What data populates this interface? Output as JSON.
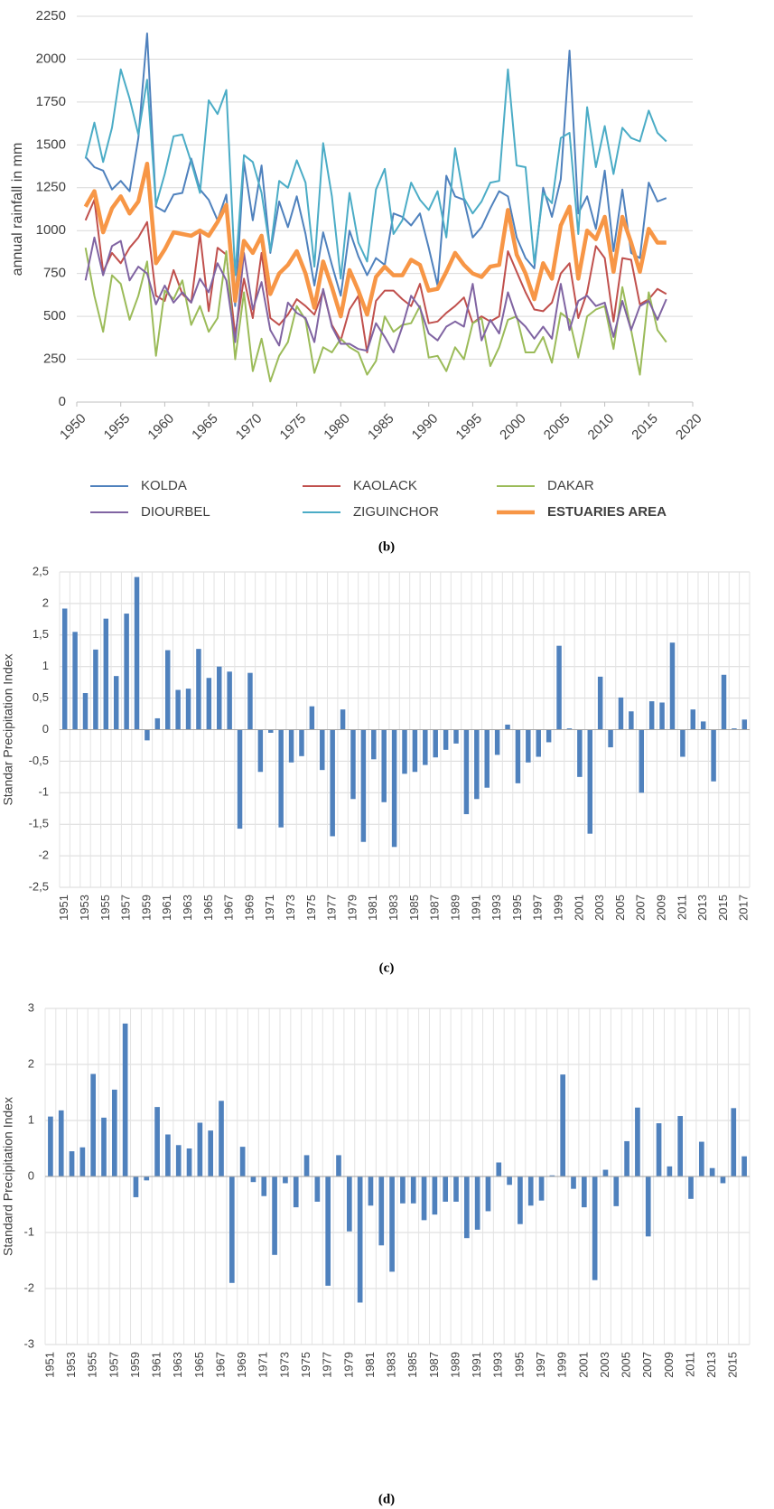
{
  "chart_data": [
    {
      "type": "line",
      "ylabel": "annual rainfall in mm",
      "caption": "(b)",
      "x": [
        1951,
        1952,
        1953,
        1954,
        1955,
        1956,
        1957,
        1958,
        1959,
        1960,
        1961,
        1962,
        1963,
        1964,
        1965,
        1966,
        1967,
        1968,
        1969,
        1970,
        1971,
        1972,
        1973,
        1974,
        1975,
        1976,
        1977,
        1978,
        1979,
        1980,
        1981,
        1982,
        1983,
        1984,
        1985,
        1986,
        1987,
        1988,
        1989,
        1990,
        1991,
        1992,
        1993,
        1994,
        1995,
        1996,
        1997,
        1998,
        1999,
        2000,
        2001,
        2002,
        2003,
        2004,
        2005,
        2006,
        2007,
        2008,
        2009,
        2010,
        2011,
        2012,
        2013,
        2014,
        2015,
        2016,
        2017
      ],
      "xlim": [
        1950,
        2020
      ],
      "xticks": [
        1950,
        1955,
        1960,
        1965,
        1970,
        1975,
        1980,
        1985,
        1990,
        1995,
        2000,
        2005,
        2010,
        2015,
        2020
      ],
      "ylim": [
        0,
        2250
      ],
      "yticks": [
        0,
        250,
        500,
        750,
        1000,
        1250,
        1500,
        1750,
        2000,
        2250
      ],
      "grid": true,
      "series": [
        {
          "name": "KOLDA",
          "color": "#4f81bd",
          "line_width": 2,
          "values": [
            1430,
            1370,
            1350,
            1240,
            1290,
            1230,
            1540,
            2150,
            1140,
            1110,
            1210,
            1220,
            1420,
            1240,
            1180,
            1060,
            1210,
            560,
            1400,
            1060,
            1380,
            870,
            1170,
            1020,
            1200,
            980,
            680,
            990,
            800,
            620,
            1000,
            850,
            740,
            840,
            800,
            1100,
            1080,
            1030,
            1100,
            900,
            680,
            1320,
            1200,
            1180,
            960,
            1020,
            1130,
            1230,
            1200,
            960,
            840,
            780,
            1250,
            1080,
            1300,
            2050,
            1100,
            1200,
            1010,
            1350,
            880,
            1240,
            870,
            840,
            1280,
            1170,
            1190
          ]
        },
        {
          "name": "KAOLACK",
          "color": "#c0504d",
          "line_width": 2,
          "values": [
            1060,
            1180,
            760,
            870,
            810,
            900,
            960,
            1050,
            620,
            590,
            770,
            630,
            580,
            980,
            530,
            900,
            860,
            390,
            720,
            490,
            870,
            490,
            450,
            510,
            600,
            560,
            510,
            650,
            450,
            360,
            540,
            620,
            290,
            590,
            650,
            650,
            600,
            560,
            690,
            460,
            470,
            520,
            560,
            610,
            460,
            500,
            470,
            500,
            880,
            760,
            640,
            540,
            530,
            580,
            750,
            810,
            490,
            640,
            910,
            840,
            470,
            840,
            830,
            570,
            600,
            660,
            630
          ]
        },
        {
          "name": "DAKAR",
          "color": "#9bbb59",
          "line_width": 2,
          "values": [
            900,
            620,
            410,
            740,
            690,
            480,
            620,
            820,
            270,
            650,
            600,
            710,
            450,
            560,
            410,
            490,
            880,
            250,
            640,
            180,
            370,
            120,
            270,
            350,
            560,
            480,
            170,
            320,
            290,
            370,
            320,
            290,
            160,
            240,
            500,
            410,
            450,
            460,
            560,
            260,
            270,
            180,
            320,
            250,
            460,
            490,
            210,
            320,
            480,
            500,
            290,
            290,
            380,
            230,
            520,
            480,
            260,
            500,
            540,
            560,
            310,
            670,
            420,
            160,
            640,
            420,
            350
          ]
        },
        {
          "name": "DIOURBEL",
          "color": "#8064a2",
          "line_width": 2,
          "values": [
            710,
            960,
            740,
            910,
            940,
            710,
            790,
            750,
            570,
            680,
            580,
            640,
            580,
            720,
            640,
            810,
            710,
            350,
            870,
            540,
            700,
            420,
            330,
            580,
            520,
            490,
            350,
            660,
            440,
            340,
            340,
            310,
            300,
            460,
            380,
            290,
            440,
            620,
            550,
            400,
            360,
            440,
            470,
            440,
            690,
            360,
            480,
            400,
            640,
            490,
            440,
            370,
            440,
            370,
            690,
            420,
            590,
            620,
            560,
            580,
            380,
            590,
            420,
            560,
            590,
            480,
            600
          ]
        },
        {
          "name": "ZIGUINCHOR",
          "color": "#4bacc6",
          "line_width": 2,
          "values": [
            1420,
            1630,
            1400,
            1600,
            1940,
            1770,
            1560,
            1880,
            1150,
            1330,
            1550,
            1560,
            1400,
            1220,
            1760,
            1680,
            1820,
            740,
            1440,
            1400,
            1220,
            880,
            1290,
            1250,
            1410,
            1280,
            790,
            1510,
            1200,
            720,
            1220,
            930,
            820,
            1240,
            1360,
            980,
            1060,
            1280,
            1180,
            1120,
            1230,
            960,
            1480,
            1190,
            1100,
            1170,
            1280,
            1290,
            1940,
            1380,
            1370,
            810,
            1220,
            1160,
            1540,
            1570,
            980,
            1720,
            1370,
            1610,
            1330,
            1600,
            1540,
            1520,
            1700,
            1570,
            1520
          ]
        },
        {
          "name": "ESTUARIES AREA",
          "color": "#f79646",
          "line_width": 4.5,
          "values": [
            1140,
            1230,
            990,
            1130,
            1200,
            1100,
            1170,
            1390,
            810,
            890,
            990,
            980,
            970,
            1000,
            970,
            1050,
            1150,
            590,
            940,
            870,
            970,
            630,
            750,
            800,
            880,
            750,
            550,
            820,
            670,
            500,
            770,
            650,
            510,
            730,
            790,
            740,
            740,
            830,
            800,
            650,
            660,
            760,
            870,
            800,
            750,
            730,
            790,
            800,
            1120,
            860,
            750,
            600,
            810,
            720,
            1030,
            1140,
            720,
            1000,
            950,
            1080,
            760,
            1080,
            930,
            760,
            1010,
            930,
            930
          ]
        }
      ]
    },
    {
      "type": "bar",
      "ylabel": "Standar Precipitation Index",
      "caption": "(c)",
      "color": "#4f81bd",
      "grid": true,
      "categories": [
        "1951",
        null,
        "1953",
        null,
        "1955",
        null,
        "1957",
        null,
        "1959",
        null,
        "1961",
        null,
        "1963",
        null,
        "1965",
        null,
        "1967",
        null,
        "1969",
        null,
        "1971",
        null,
        "1973",
        null,
        "1975",
        null,
        "1977",
        null,
        "1979",
        null,
        "1981",
        null,
        "1983",
        null,
        "1985",
        null,
        "1987",
        null,
        "1989",
        null,
        "1991",
        null,
        "1993",
        null,
        "1995",
        null,
        "1997",
        null,
        "1999",
        null,
        "2001",
        null,
        "2003",
        null,
        "2005",
        null,
        "2007",
        null,
        "2009",
        null,
        "2011",
        null,
        "2013",
        null,
        "2015",
        null,
        "2017"
      ],
      "values": [
        1.92,
        1.55,
        0.58,
        1.27,
        1.76,
        0.85,
        1.84,
        2.42,
        -0.17,
        0.18,
        1.26,
        0.63,
        0.65,
        1.28,
        0.82,
        1.0,
        0.92,
        -1.57,
        0.9,
        -0.67,
        -0.05,
        -1.55,
        -0.52,
        -0.42,
        0.37,
        -0.64,
        -1.69,
        0.32,
        -1.1,
        -1.78,
        -0.47,
        -1.15,
        -1.86,
        -0.7,
        -0.67,
        -0.56,
        -0.44,
        -0.32,
        -0.22,
        -1.34,
        -1.1,
        -0.92,
        -0.4,
        0.08,
        -0.85,
        -0.52,
        -0.43,
        -0.2,
        1.33,
        0.02,
        -0.75,
        -1.65,
        0.84,
        -0.28,
        0.51,
        0.29,
        -1.0,
        0.45,
        0.43,
        1.38,
        -0.43,
        0.32,
        0.13,
        -0.82,
        0.87,
        0.02,
        0.16
      ],
      "ylim": [
        -2.5,
        2.5
      ],
      "yticks": [
        {
          "value": -2.5,
          "label": "-2,5"
        },
        -2,
        {
          "value": -1.5,
          "label": "-1,5"
        },
        -1,
        {
          "value": -0.5,
          "label": "-0,5"
        },
        0,
        {
          "value": 0.5,
          "label": "0,5"
        },
        1,
        {
          "value": 1.5,
          "label": "1,5"
        },
        2,
        {
          "value": 2.5,
          "label": "2,5"
        }
      ]
    },
    {
      "type": "bar",
      "ylabel": "Standard Precipitation Index",
      "caption": "(d)",
      "color": "#4f81bd",
      "grid": true,
      "categories": [
        "1951",
        null,
        "1953",
        null,
        "1955",
        null,
        "1957",
        null,
        "1959",
        null,
        "1961",
        null,
        "1963",
        null,
        "1965",
        null,
        "1967",
        null,
        "1969",
        null,
        "1971",
        null,
        "1973",
        null,
        "1975",
        null,
        "1977",
        null,
        "1979",
        null,
        "1981",
        null,
        "1983",
        null,
        "1985",
        null,
        "1987",
        null,
        "1989",
        null,
        "1991",
        null,
        "1993",
        null,
        "1995",
        null,
        "1997",
        null,
        "1999",
        null,
        "2001",
        null,
        "2003",
        null,
        "2005",
        null,
        "2007",
        null,
        "2009",
        null,
        "2011",
        null,
        "2013",
        null,
        "2015",
        null
      ],
      "values": [
        1.07,
        1.18,
        0.45,
        0.52,
        1.83,
        1.05,
        1.55,
        2.73,
        -0.37,
        -0.07,
        1.24,
        0.75,
        0.56,
        0.5,
        0.96,
        0.82,
        1.35,
        -1.9,
        0.53,
        -0.1,
        -0.35,
        -1.4,
        -0.12,
        -0.55,
        0.38,
        -0.45,
        -1.95,
        0.38,
        -0.98,
        -2.25,
        -0.52,
        -1.23,
        -1.7,
        -0.48,
        -0.48,
        -0.78,
        -0.68,
        -0.45,
        -0.45,
        -1.1,
        -0.95,
        -0.62,
        0.25,
        -0.15,
        -0.85,
        -0.52,
        -0.43,
        0.02,
        1.82,
        -0.22,
        -0.55,
        -1.85,
        0.12,
        -0.53,
        0.63,
        1.23,
        -1.07,
        0.95,
        0.18,
        1.08,
        -0.4,
        0.62,
        0.15,
        -0.12,
        1.22,
        0.36
      ],
      "ylim": [
        -3,
        3
      ],
      "yticks": [
        -3,
        -2,
        -1,
        0,
        1,
        2,
        3
      ]
    }
  ]
}
